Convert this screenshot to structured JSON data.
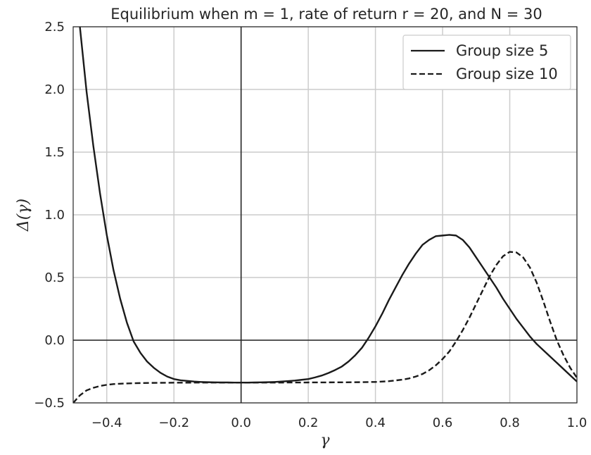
{
  "chart_data": {
    "type": "line",
    "title": "Equilibrium when m = 1, rate of return r = 20, and N = 30",
    "xlabel": "γ",
    "ylabel": "Δ(γ)",
    "xlim": [
      -0.5,
      1.0
    ],
    "ylim": [
      -0.5,
      2.5
    ],
    "xticks": [
      -0.4,
      -0.2,
      0.0,
      0.2,
      0.4,
      0.6,
      0.8,
      1.0
    ],
    "xtick_labels": [
      "−0.4",
      "−0.2",
      "0.0",
      "0.2",
      "0.4",
      "0.6",
      "0.8",
      "1.0"
    ],
    "yticks": [
      -0.5,
      0.0,
      0.5,
      1.0,
      1.5,
      2.0,
      2.5
    ],
    "ytick_labels": [
      "−0.5",
      "0.0",
      "0.5",
      "1.0",
      "1.5",
      "2.0",
      "2.5"
    ],
    "grid": true,
    "reference_lines": {
      "x": 0.0,
      "y": 0.0
    },
    "legend_position": "top-right",
    "series": [
      {
        "name": "Group size 5",
        "style": "solid",
        "color": "#1a1a1a",
        "x": [
          -0.48,
          -0.46,
          -0.44,
          -0.42,
          -0.4,
          -0.38,
          -0.36,
          -0.34,
          -0.32,
          -0.3,
          -0.28,
          -0.26,
          -0.24,
          -0.22,
          -0.2,
          -0.18,
          -0.16,
          -0.14,
          -0.12,
          -0.1,
          -0.08,
          -0.06,
          -0.04,
          -0.02,
          0.0,
          0.02,
          0.04,
          0.06,
          0.08,
          0.1,
          0.12,
          0.14,
          0.16,
          0.18,
          0.2,
          0.22,
          0.24,
          0.26,
          0.28,
          0.3,
          0.32,
          0.34,
          0.36,
          0.38,
          0.4,
          0.42,
          0.44,
          0.46,
          0.48,
          0.5,
          0.52,
          0.54,
          0.56,
          0.58,
          0.6,
          0.62,
          0.64,
          0.66,
          0.68,
          0.7,
          0.72,
          0.74,
          0.76,
          0.78,
          0.8,
          0.82,
          0.84,
          0.86,
          0.88,
          0.9,
          0.92,
          0.94,
          0.96,
          0.98,
          1.0
        ],
        "y": [
          2.5,
          1.98,
          1.55,
          1.17,
          0.84,
          0.56,
          0.33,
          0.14,
          -0.01,
          -0.1,
          -0.17,
          -0.22,
          -0.26,
          -0.29,
          -0.31,
          -0.32,
          -0.325,
          -0.33,
          -0.333,
          -0.335,
          -0.336,
          -0.337,
          -0.337,
          -0.338,
          -0.338,
          -0.338,
          -0.337,
          -0.336,
          -0.335,
          -0.333,
          -0.33,
          -0.326,
          -0.322,
          -0.316,
          -0.31,
          -0.297,
          -0.282,
          -0.262,
          -0.238,
          -0.21,
          -0.17,
          -0.12,
          -0.06,
          0.02,
          0.11,
          0.21,
          0.32,
          0.42,
          0.52,
          0.61,
          0.69,
          0.76,
          0.8,
          0.83,
          0.835,
          0.84,
          0.835,
          0.8,
          0.74,
          0.66,
          0.58,
          0.5,
          0.42,
          0.33,
          0.25,
          0.17,
          0.1,
          0.03,
          -0.03,
          -0.08,
          -0.13,
          -0.18,
          -0.23,
          -0.28,
          -0.33
        ]
      },
      {
        "name": "Group size 10",
        "style": "dashed",
        "color": "#1a1a1a",
        "x": [
          -0.5,
          -0.48,
          -0.46,
          -0.44,
          -0.42,
          -0.4,
          -0.38,
          -0.36,
          -0.34,
          -0.3,
          -0.25,
          -0.2,
          -0.1,
          0.0,
          0.1,
          0.2,
          0.3,
          0.35,
          0.4,
          0.44,
          0.48,
          0.5,
          0.52,
          0.54,
          0.56,
          0.58,
          0.6,
          0.62,
          0.64,
          0.66,
          0.68,
          0.7,
          0.72,
          0.74,
          0.76,
          0.78,
          0.8,
          0.82,
          0.84,
          0.86,
          0.88,
          0.9,
          0.92,
          0.94,
          0.96,
          0.98,
          1.0
        ],
        "y": [
          -0.5,
          -0.44,
          -0.4,
          -0.38,
          -0.365,
          -0.356,
          -0.35,
          -0.347,
          -0.345,
          -0.342,
          -0.34,
          -0.339,
          -0.338,
          -0.338,
          -0.338,
          -0.337,
          -0.336,
          -0.335,
          -0.333,
          -0.327,
          -0.315,
          -0.305,
          -0.29,
          -0.27,
          -0.24,
          -0.2,
          -0.15,
          -0.09,
          -0.01,
          0.08,
          0.18,
          0.29,
          0.4,
          0.51,
          0.6,
          0.67,
          0.705,
          0.7,
          0.66,
          0.58,
          0.46,
          0.31,
          0.15,
          0.0,
          -0.12,
          -0.22,
          -0.3
        ]
      }
    ]
  }
}
